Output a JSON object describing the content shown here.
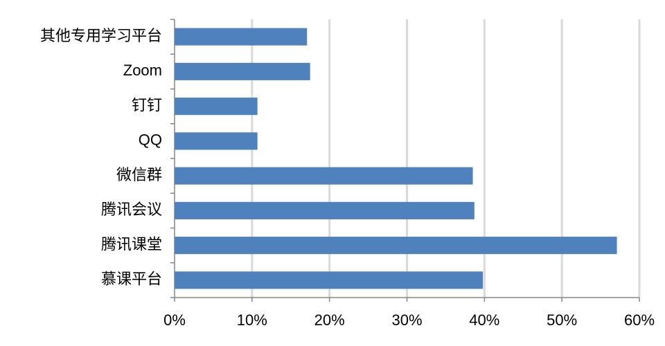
{
  "chart_data": {
    "type": "bar",
    "orientation": "horizontal",
    "categories": [
      "其他专用学习平台",
      "Zoom",
      "钉钉",
      "QQ",
      "微信群",
      "腾讯会议",
      "腾讯课堂",
      "慕课平台"
    ],
    "values": [
      17.1,
      17.5,
      10.7,
      10.7,
      38.5,
      38.7,
      57.1,
      39.8
    ],
    "color": "#4f81bd",
    "xlim": [
      0,
      60
    ],
    "xticks": [
      {
        "value": 0,
        "label": "0%"
      },
      {
        "value": 10,
        "label": "10%"
      },
      {
        "value": 20,
        "label": "20%"
      },
      {
        "value": 30,
        "label": "30%"
      },
      {
        "value": 40,
        "label": "40%"
      },
      {
        "value": 50,
        "label": "50%"
      },
      {
        "value": 60,
        "label": "60%"
      }
    ],
    "grid": true
  }
}
